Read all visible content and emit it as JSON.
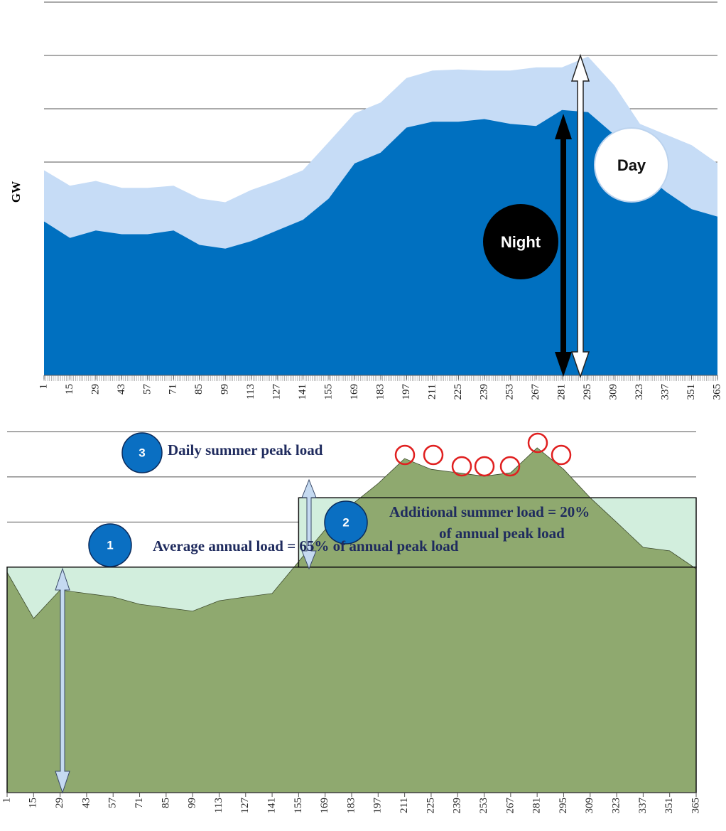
{
  "chart_data": [
    {
      "type": "area",
      "ylabel": "GW",
      "x": [
        1,
        15,
        29,
        43,
        57,
        71,
        85,
        99,
        113,
        127,
        141,
        155,
        169,
        183,
        197,
        211,
        225,
        239,
        253,
        267,
        281,
        295,
        309,
        323,
        337,
        351,
        365
      ],
      "series": [
        {
          "name": "Day",
          "color": "#c6dcf6",
          "values": [
            3.84,
            3.55,
            3.64,
            3.51,
            3.51,
            3.55,
            3.31,
            3.24,
            3.47,
            3.64,
            3.84,
            4.37,
            4.91,
            5.11,
            5.57,
            5.71,
            5.73,
            5.71,
            5.71,
            5.77,
            5.77,
            5.97,
            5.44,
            4.71,
            4.51,
            4.31,
            3.97
          ]
        },
        {
          "name": "Night",
          "color": "#0070c0",
          "values": [
            2.88,
            2.57,
            2.71,
            2.64,
            2.64,
            2.71,
            2.44,
            2.37,
            2.51,
            2.71,
            2.91,
            3.31,
            3.97,
            4.17,
            4.64,
            4.75,
            4.75,
            4.8,
            4.71,
            4.67,
            4.97,
            4.93,
            4.51,
            3.84,
            3.44,
            3.11,
            2.97
          ]
        }
      ],
      "xlim": [
        1,
        365
      ],
      "xticks": [
        1,
        15,
        29,
        43,
        57,
        71,
        85,
        99,
        113,
        127,
        141,
        155,
        169,
        183,
        197,
        211,
        225,
        239,
        253,
        267,
        281,
        295,
        309,
        323,
        337,
        351,
        365
      ],
      "ylim": [
        0,
        7
      ],
      "ygrid": [
        4,
        5,
        6,
        7
      ]
    },
    {
      "type": "area",
      "x": [
        1,
        15,
        29,
        43,
        57,
        71,
        85,
        99,
        113,
        127,
        141,
        155,
        169,
        183,
        197,
        211,
        225,
        239,
        253,
        267,
        281,
        295,
        309,
        323,
        337,
        351,
        365
      ],
      "series": [
        {
          "color": "#8fa96f",
          "values": [
            63.5,
            50.2,
            58.4,
            57.4,
            56.4,
            54.3,
            53.3,
            52.3,
            55.3,
            56.4,
            57.4,
            66.6,
            75.8,
            83.0,
            89.1,
            96.3,
            93.2,
            92.2,
            91.2,
            92.2,
            99.4,
            93.2,
            85.0,
            77.9,
            70.7,
            69.7,
            64.5
          ]
        }
      ],
      "average_load": 65,
      "summer_load": 20,
      "summer_start": 155,
      "callouts": [
        {
          "number": "1",
          "text": [
            "Average annual load = 65% of annual peak load"
          ]
        },
        {
          "number": "2",
          "text": [
            "Additional summer load = 20%",
            "of annual peak load"
          ]
        },
        {
          "number": "3",
          "text": [
            "Daily summer peak load"
          ]
        }
      ],
      "xlim": [
        1,
        365
      ],
      "xticks": [
        1,
        15,
        29,
        43,
        57,
        71,
        85,
        99,
        113,
        127,
        141,
        155,
        169,
        183,
        197,
        211,
        225,
        239,
        253,
        267,
        281,
        295,
        309,
        323,
        337,
        351,
        365
      ],
      "ylim": [
        0,
        105
      ],
      "ygrid": [
        65,
        78,
        91,
        104
      ]
    }
  ]
}
